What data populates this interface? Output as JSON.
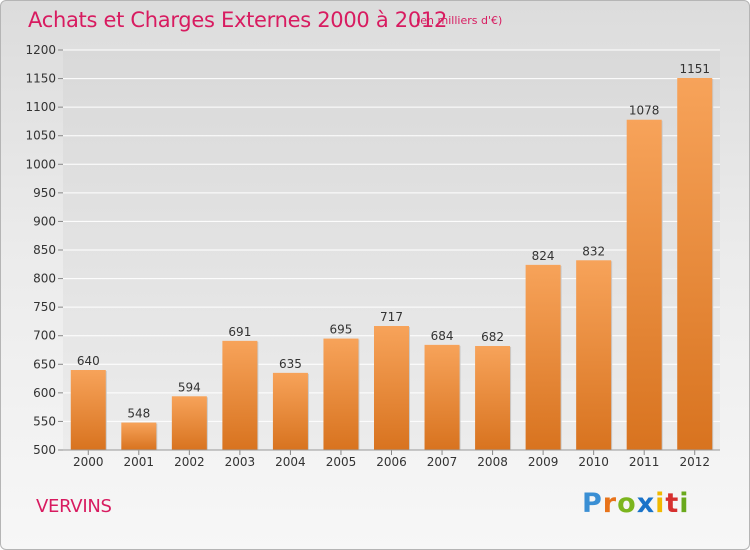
{
  "title": "Achats et Charges Externes 2000 à 2012",
  "unit_note": "(en milliers d'€)",
  "location": "VERVINS",
  "brand": {
    "letters": [
      "P",
      "r",
      "o",
      "x",
      "i",
      "t",
      "i"
    ],
    "colors": [
      "#3a8fd4",
      "#e8731a",
      "#7cb51e",
      "#1a73c9",
      "#f1b900",
      "#d6302f",
      "#6aa91c"
    ]
  },
  "colors": {
    "title": "#d81b60",
    "bar_light": "#f7a35a",
    "bar_dark": "#d8731f",
    "grid": "#ffffff"
  },
  "chart_data": {
    "type": "bar",
    "title": "Achats et Charges Externes 2000 à 2012",
    "categories": [
      "2000",
      "2001",
      "2002",
      "2003",
      "2004",
      "2005",
      "2006",
      "2007",
      "2008",
      "2009",
      "2010",
      "2011",
      "2012"
    ],
    "values": [
      640,
      548,
      594,
      691,
      635,
      695,
      717,
      684,
      682,
      824,
      832,
      1078,
      1151
    ],
    "ylim": [
      500,
      1200
    ],
    "yticks": [
      500,
      550,
      600,
      650,
      700,
      750,
      800,
      850,
      900,
      950,
      1000,
      1050,
      1100,
      1150,
      1200
    ],
    "grid": true,
    "data_labels": true
  }
}
